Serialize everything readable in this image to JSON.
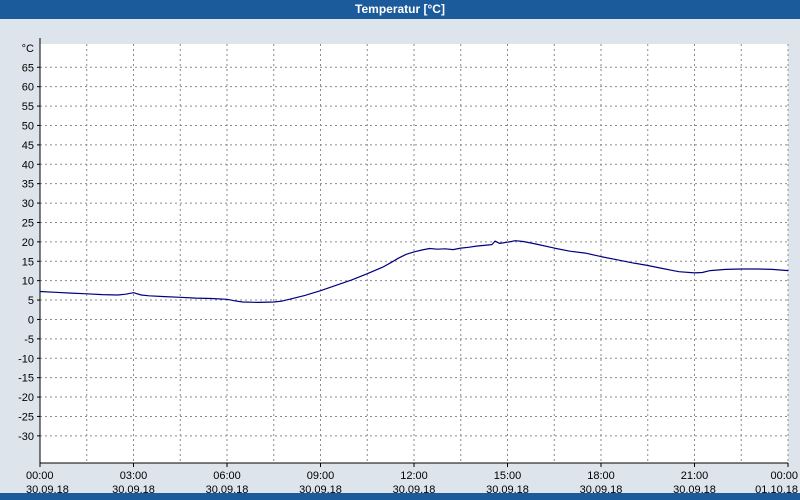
{
  "window": {
    "title": "Temperatur [°C]"
  },
  "colors": {
    "titlebar": "#1b5a9b",
    "background": "#dde4ec",
    "plot_background": "#ffffff",
    "grid": "#8a8a8a",
    "axis": "#000000",
    "line": "#000080"
  },
  "chart_data": {
    "type": "line",
    "title": "Temperatur [°C]",
    "ylabel": "°C",
    "ylim": [
      -30,
      65
    ],
    "y_tick_step": 5,
    "grid": "dashed",
    "legend_position": "none",
    "y_ticks": [
      65,
      60,
      55,
      50,
      45,
      40,
      35,
      30,
      25,
      20,
      15,
      10,
      5,
      0,
      -5,
      -10,
      -15,
      -20,
      -25,
      -30
    ],
    "x_minor_step_hours": 1.5,
    "x_ticks": [
      {
        "hour": 0,
        "time": "00:00",
        "date": "30.09.18"
      },
      {
        "hour": 3,
        "time": "03:00",
        "date": "30.09.18"
      },
      {
        "hour": 6,
        "time": "06:00",
        "date": "30.09.18"
      },
      {
        "hour": 9,
        "time": "09:00",
        "date": "30.09.18"
      },
      {
        "hour": 12,
        "time": "12:00",
        "date": "30.09.18"
      },
      {
        "hour": 15,
        "time": "15:00",
        "date": "30.09.18"
      },
      {
        "hour": 18,
        "time": "18:00",
        "date": "30.09.18"
      },
      {
        "hour": 21,
        "time": "21:00",
        "date": "30.09.18"
      },
      {
        "hour": 24,
        "time": "00:00",
        "date": "01.10.18"
      }
    ],
    "series": [
      {
        "name": "Temperatur",
        "color": "#000080",
        "points": [
          [
            0,
            7.2
          ],
          [
            0.5,
            7.0
          ],
          [
            1,
            6.8
          ],
          [
            1.5,
            6.6
          ],
          [
            2,
            6.4
          ],
          [
            2.5,
            6.3
          ],
          [
            2.75,
            6.5
          ],
          [
            3,
            6.9
          ],
          [
            3.25,
            6.3
          ],
          [
            3.5,
            6.1
          ],
          [
            4,
            5.9
          ],
          [
            4.5,
            5.7
          ],
          [
            5,
            5.5
          ],
          [
            5.5,
            5.4
          ],
          [
            6,
            5.2
          ],
          [
            6.25,
            4.8
          ],
          [
            6.5,
            4.5
          ],
          [
            7,
            4.4
          ],
          [
            7.5,
            4.5
          ],
          [
            7.75,
            4.7
          ],
          [
            8,
            5.2
          ],
          [
            8.5,
            6.2
          ],
          [
            9,
            7.4
          ],
          [
            9.5,
            8.8
          ],
          [
            10,
            10.2
          ],
          [
            10.5,
            11.8
          ],
          [
            11,
            13.5
          ],
          [
            11.25,
            14.6
          ],
          [
            11.5,
            15.8
          ],
          [
            11.75,
            16.8
          ],
          [
            12,
            17.4
          ],
          [
            12.25,
            17.9
          ],
          [
            12.5,
            18.3
          ],
          [
            12.75,
            18.1
          ],
          [
            13,
            18.2
          ],
          [
            13.25,
            18.0
          ],
          [
            13.5,
            18.4
          ],
          [
            13.75,
            18.6
          ],
          [
            14,
            18.9
          ],
          [
            14.25,
            19.1
          ],
          [
            14.5,
            19.3
          ],
          [
            14.6,
            20.2
          ],
          [
            14.75,
            19.6
          ],
          [
            15,
            19.9
          ],
          [
            15.25,
            20.3
          ],
          [
            15.5,
            20.1
          ],
          [
            15.75,
            19.7
          ],
          [
            16,
            19.3
          ],
          [
            16.5,
            18.4
          ],
          [
            17,
            17.6
          ],
          [
            17.5,
            17.1
          ],
          [
            18,
            16.2
          ],
          [
            18.5,
            15.4
          ],
          [
            19,
            14.6
          ],
          [
            19.5,
            13.9
          ],
          [
            20,
            13.1
          ],
          [
            20.25,
            12.7
          ],
          [
            20.5,
            12.3
          ],
          [
            21,
            12.0
          ],
          [
            21.25,
            12.1
          ],
          [
            21.5,
            12.6
          ],
          [
            22,
            12.9
          ],
          [
            22.5,
            13.0
          ],
          [
            23,
            13.0
          ],
          [
            23.5,
            12.9
          ],
          [
            24,
            12.6
          ]
        ]
      }
    ]
  }
}
